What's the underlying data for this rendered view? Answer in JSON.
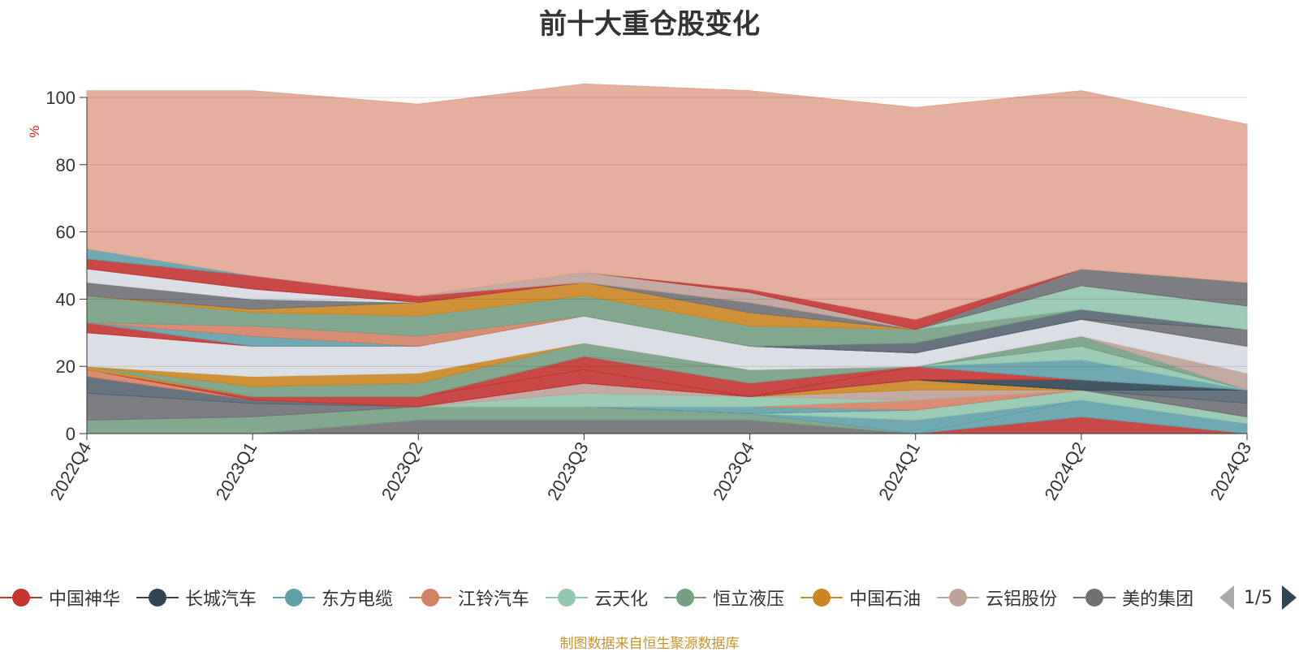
{
  "title": "前十大重仓股变化",
  "source_note": "制图数据来自恒生聚源数据库",
  "legend": {
    "items": [
      {
        "label": "中国神华",
        "color": "#c23531"
      },
      {
        "label": "长城汽车",
        "color": "#2f4554"
      },
      {
        "label": "东方电缆",
        "color": "#61a0a8"
      },
      {
        "label": "江铃汽车",
        "color": "#d48265"
      },
      {
        "label": "云天化",
        "color": "#91c7ae"
      },
      {
        "label": "恒立液压",
        "color": "#749f83"
      },
      {
        "label": "中国石油",
        "color": "#ca8622"
      },
      {
        "label": "云铝股份",
        "color": "#bda29a"
      },
      {
        "label": "美的集团",
        "color": "#6e7074"
      }
    ],
    "page": "1/5"
  },
  "chart_data": {
    "type": "area",
    "stacked": true,
    "title": "前十大重仓股变化",
    "ylabel": "%",
    "ylim": [
      0,
      100
    ],
    "yticks": [
      0,
      20,
      40,
      60,
      80,
      100
    ],
    "categories": [
      "2022Q4",
      "2023Q1",
      "2023Q2",
      "2023Q3",
      "2023Q4",
      "2024Q1",
      "2024Q2",
      "2024Q3"
    ],
    "grid": true,
    "series": [
      {
        "values": [
          0,
          0,
          4,
          4,
          4,
          0,
          0,
          0
        ],
        "color": "#6e7074"
      },
      {
        "values": [
          4,
          5,
          4,
          4,
          2,
          0,
          0,
          0
        ],
        "color": "#749f83"
      },
      {
        "values": [
          0,
          0,
          0,
          0,
          0,
          0,
          5,
          0
        ],
        "color": "#c23531"
      },
      {
        "values": [
          0,
          0,
          0,
          0,
          0,
          0,
          5,
          3
        ],
        "color": "#61a0a8"
      },
      {
        "values": [
          0,
          0,
          0,
          0,
          0,
          4,
          0,
          0
        ],
        "color": "#61a0a8"
      },
      {
        "values": [
          0,
          0,
          0,
          0,
          0,
          3,
          3,
          2
        ],
        "color": "#91c7ae"
      },
      {
        "values": [
          8,
          4,
          0,
          0,
          0,
          0,
          0,
          0
        ],
        "color": "#6e7074"
      },
      {
        "values": [
          5,
          1,
          0,
          0,
          0,
          0,
          0,
          0
        ],
        "color": "#546570"
      },
      {
        "values": [
          0,
          0,
          0,
          0,
          2,
          0,
          0,
          0
        ],
        "color": "#61a0a8"
      },
      {
        "values": [
          0,
          0,
          0,
          0,
          0,
          3,
          0,
          0
        ],
        "color": "#d48265"
      },
      {
        "values": [
          0,
          0,
          0,
          4,
          3,
          0,
          0,
          0
        ],
        "color": "#91c7ae"
      },
      {
        "values": [
          0,
          0,
          0,
          3,
          0,
          3,
          0,
          0
        ],
        "color": "#bda29a"
      },
      {
        "values": [
          0,
          0,
          0,
          0,
          0,
          3,
          0,
          0
        ],
        "color": "#ca8622"
      },
      {
        "values": [
          0,
          0,
          0,
          0,
          0,
          0,
          0,
          4
        ],
        "color": "#6e7074"
      },
      {
        "values": [
          0,
          0,
          0,
          0,
          0,
          0,
          0,
          4
        ],
        "color": "#546570"
      },
      {
        "values": [
          0,
          0,
          0,
          0,
          0,
          0,
          3,
          0
        ],
        "color": "#2f4554"
      },
      {
        "values": [
          0,
          0,
          0,
          0,
          0,
          4,
          0,
          0
        ],
        "color": "#c23531"
      },
      {
        "values": [
          2,
          0,
          0,
          0,
          0,
          0,
          0,
          0
        ],
        "color": "#d48265"
      },
      {
        "values": [
          0,
          1,
          3,
          4,
          0,
          0,
          0,
          0
        ],
        "color": "#c23531"
      },
      {
        "values": [
          0,
          0,
          0,
          4,
          4,
          0,
          0,
          0
        ],
        "color": "#c23531"
      },
      {
        "values": [
          0,
          0,
          0,
          0,
          4,
          0,
          0,
          0
        ],
        "color": "#749f83"
      },
      {
        "values": [
          0,
          0,
          0,
          0,
          0,
          0,
          6,
          0
        ],
        "color": "#61a0a8"
      },
      {
        "values": [
          0,
          0,
          0,
          0,
          0,
          0,
          4,
          0
        ],
        "color": "#91c7ae"
      },
      {
        "values": [
          0,
          0,
          0,
          0,
          0,
          0,
          3,
          0
        ],
        "color": "#749f83"
      },
      {
        "values": [
          0,
          0,
          0,
          0,
          0,
          0,
          0,
          5
        ],
        "color": "#bda29a"
      },
      {
        "values": [
          1,
          0,
          0,
          0,
          0,
          0,
          0,
          0
        ],
        "color": "#ca8622"
      },
      {
        "values": [
          0,
          3,
          4,
          4,
          0,
          0,
          0,
          0
        ],
        "color": "#749f83"
      },
      {
        "values": [
          0,
          3,
          3,
          0,
          0,
          0,
          0,
          0
        ],
        "color": "#ca8622"
      },
      {
        "values": [
          10,
          9,
          8,
          8,
          7,
          4,
          5,
          8
        ],
        "color": "#d7dce2"
      },
      {
        "values": [
          3,
          0,
          0,
          0,
          0,
          0,
          0,
          0
        ],
        "color": "#c23531"
      },
      {
        "values": [
          0,
          3,
          0,
          0,
          0,
          0,
          0,
          0
        ],
        "color": "#61a0a8"
      },
      {
        "values": [
          0,
          0,
          0,
          0,
          0,
          0,
          0,
          5
        ],
        "color": "#6e7074"
      },
      {
        "values": [
          0,
          0,
          0,
          0,
          0,
          3,
          3,
          0
        ],
        "color": "#546570"
      },
      {
        "values": [
          0,
          3,
          3,
          0,
          0,
          0,
          0,
          0
        ],
        "color": "#d48265"
      },
      {
        "values": [
          8,
          4,
          6,
          6,
          6,
          4,
          0,
          0
        ],
        "color": "#749f83"
      },
      {
        "values": [
          0,
          0,
          0,
          0,
          0,
          0,
          7,
          7
        ],
        "color": "#91c7ae"
      },
      {
        "values": [
          0,
          1,
          4,
          4,
          4,
          0,
          0,
          0
        ],
        "color": "#ca8622"
      },
      {
        "values": [
          4,
          3,
          0,
          0,
          3,
          0,
          0,
          0
        ],
        "color": "#6e7074"
      },
      {
        "values": [
          0,
          0,
          0,
          0,
          0,
          0,
          5,
          7
        ],
        "color": "#6e7074"
      },
      {
        "values": [
          4,
          3,
          0,
          0,
          0,
          0,
          0,
          0
        ],
        "color": "#d7dce2"
      },
      {
        "values": [
          3,
          4,
          2,
          0,
          0,
          0,
          0,
          0
        ],
        "color": "#c23531"
      },
      {
        "values": [
          0,
          0,
          0,
          3,
          3,
          0,
          0,
          0
        ],
        "color": "#bda29a"
      },
      {
        "values": [
          0,
          0,
          0,
          0,
          1,
          3,
          0,
          0
        ],
        "color": "#c23531"
      },
      {
        "values": [
          3,
          0,
          0,
          0,
          0,
          0,
          0,
          0
        ],
        "color": "#61a0a8"
      },
      {
        "values": [
          47,
          55,
          57,
          56,
          59,
          63,
          53,
          47
        ],
        "color": "#e1a692"
      }
    ]
  }
}
